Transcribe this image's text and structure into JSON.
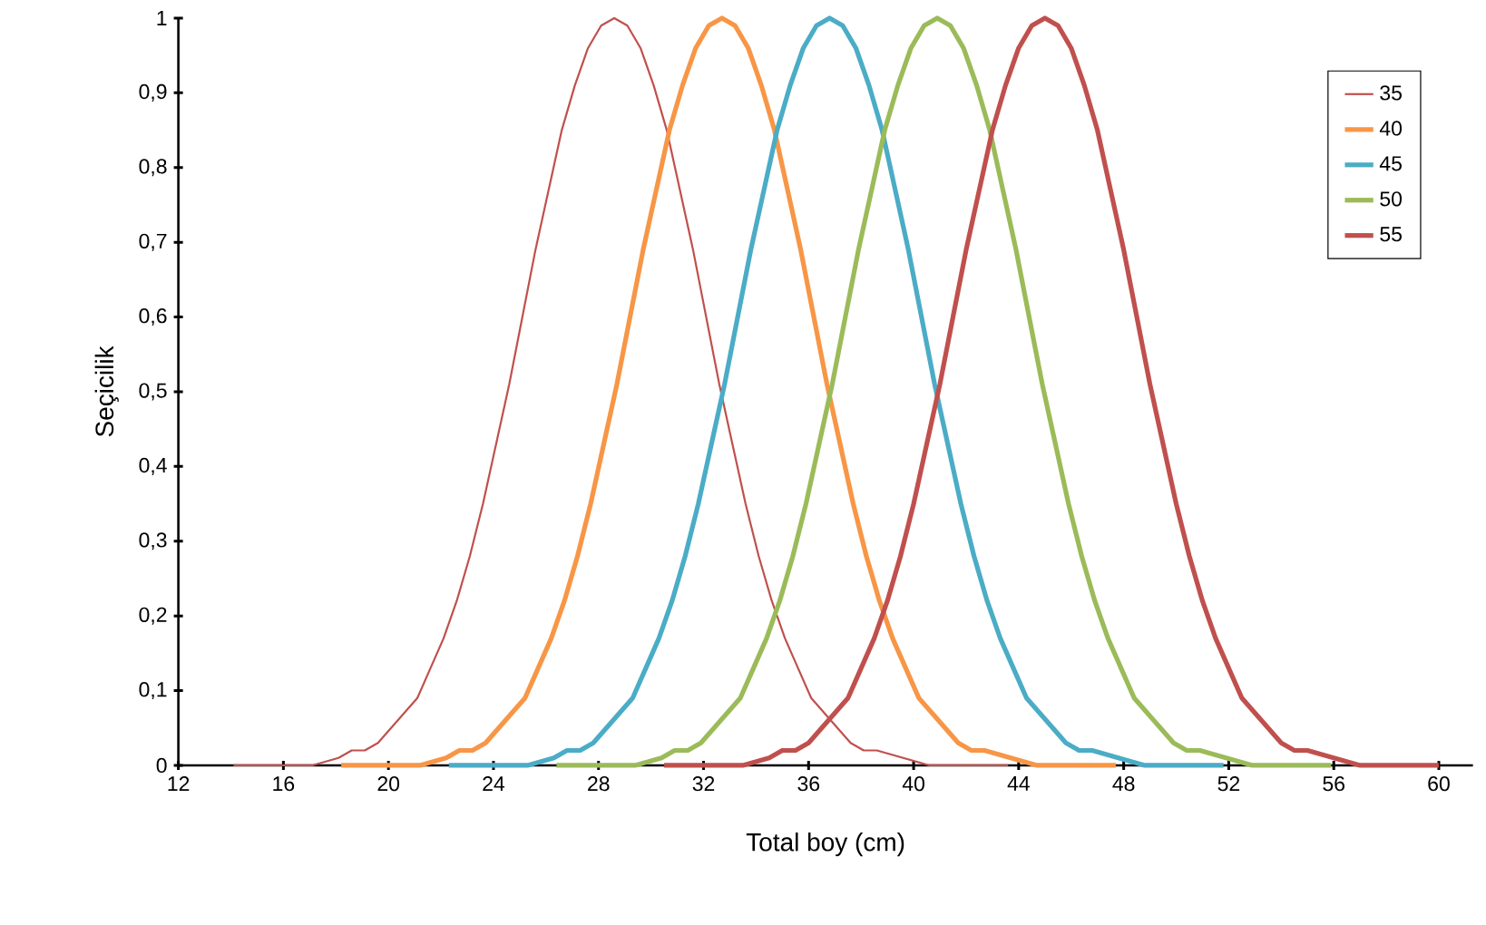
{
  "chart_data": {
    "type": "line",
    "xlabel": "Total boy (cm)",
    "ylabel": "Seçicilik",
    "xlim": [
      12,
      61.3
    ],
    "ylim": [
      0,
      1
    ],
    "xticks": [
      12,
      16,
      20,
      24,
      28,
      32,
      36,
      40,
      44,
      48,
      52,
      56,
      60
    ],
    "yticks": [
      0,
      {
        "value": 0.1,
        "label": "0,1"
      },
      {
        "value": 0.2,
        "label": "0,2"
      },
      {
        "value": 0.3,
        "label": "0,3"
      },
      {
        "value": 0.4,
        "label": "0,4"
      },
      {
        "value": 0.5,
        "label": "0,5"
      },
      {
        "value": 0.6,
        "label": "0,6"
      },
      {
        "value": 0.7,
        "label": "0,7"
      },
      {
        "value": 0.8,
        "label": "0,8"
      },
      {
        "value": 0.9,
        "label": "0,9"
      },
      1
    ],
    "grid": false,
    "legend": "top right",
    "series": [
      {
        "name": "35",
        "color": "#c0504d",
        "x": [
          14.1,
          15.1,
          16.1,
          17.1,
          18.1,
          18.6,
          19.1,
          19.6,
          20.1,
          20.6,
          21.1,
          21.6,
          22.1,
          22.6,
          23.1,
          23.6,
          24.1,
          24.6,
          25.1,
          25.6,
          26.1,
          26.6,
          27.1,
          27.6,
          28.1,
          28.6,
          29.1,
          29.6,
          30.1,
          30.6,
          31.1,
          31.6,
          32.1,
          32.6,
          33.1,
          33.6,
          34.1,
          34.6,
          35.1,
          35.6,
          36.1,
          36.6,
          37.1,
          37.6,
          38.1,
          38.6,
          39.6,
          40.6,
          41.6,
          42.6,
          43.6
        ],
        "values": [
          0,
          0,
          0,
          0,
          0.01,
          0.02,
          0.02,
          0.03,
          0.05,
          0.07,
          0.09,
          0.13,
          0.17,
          0.22,
          0.28,
          0.35,
          0.43,
          0.51,
          0.6,
          0.69,
          0.77,
          0.85,
          0.91,
          0.96,
          0.99,
          1,
          0.99,
          0.96,
          0.91,
          0.85,
          0.77,
          0.69,
          0.6,
          0.51,
          0.43,
          0.35,
          0.28,
          0.22,
          0.17,
          0.13,
          0.09,
          0.07,
          0.05,
          0.03,
          0.02,
          0.02,
          0.01,
          0,
          0,
          0,
          0
        ]
      },
      {
        "name": "40",
        "color": "#f79646",
        "x": [
          18.2,
          19.2,
          20.2,
          21.2,
          22.2,
          22.7,
          23.2,
          23.7,
          24.2,
          24.7,
          25.2,
          25.7,
          26.2,
          26.7,
          27.2,
          27.7,
          28.2,
          28.7,
          29.2,
          29.7,
          30.2,
          30.7,
          31.2,
          31.7,
          32.2,
          32.7,
          33.2,
          33.7,
          34.2,
          34.7,
          35.2,
          35.7,
          36.2,
          36.7,
          37.2,
          37.7,
          38.2,
          38.7,
          39.2,
          39.7,
          40.2,
          40.7,
          41.2,
          41.7,
          42.2,
          42.7,
          43.7,
          44.7,
          45.7,
          46.7,
          47.7
        ],
        "values": [
          0,
          0,
          0,
          0,
          0.01,
          0.02,
          0.02,
          0.03,
          0.05,
          0.07,
          0.09,
          0.13,
          0.17,
          0.22,
          0.28,
          0.35,
          0.43,
          0.51,
          0.6,
          0.69,
          0.77,
          0.85,
          0.91,
          0.96,
          0.99,
          1,
          0.99,
          0.96,
          0.91,
          0.85,
          0.77,
          0.69,
          0.6,
          0.51,
          0.43,
          0.35,
          0.28,
          0.22,
          0.17,
          0.13,
          0.09,
          0.07,
          0.05,
          0.03,
          0.02,
          0.02,
          0.01,
          0,
          0,
          0,
          0
        ]
      },
      {
        "name": "45",
        "color": "#4bacc6",
        "x": [
          22.3,
          23.3,
          24.3,
          25.3,
          26.3,
          26.8,
          27.3,
          27.8,
          28.3,
          28.8,
          29.3,
          29.8,
          30.3,
          30.8,
          31.3,
          31.8,
          32.3,
          32.8,
          33.3,
          33.8,
          34.3,
          34.8,
          35.3,
          35.8,
          36.3,
          36.8,
          37.3,
          37.8,
          38.3,
          38.8,
          39.3,
          39.8,
          40.3,
          40.8,
          41.3,
          41.8,
          42.3,
          42.8,
          43.3,
          43.8,
          44.3,
          44.8,
          45.3,
          45.8,
          46.3,
          46.8,
          47.8,
          48.8,
          49.8,
          50.8,
          51.8
        ],
        "values": [
          0,
          0,
          0,
          0,
          0.01,
          0.02,
          0.02,
          0.03,
          0.05,
          0.07,
          0.09,
          0.13,
          0.17,
          0.22,
          0.28,
          0.35,
          0.43,
          0.51,
          0.6,
          0.69,
          0.77,
          0.85,
          0.91,
          0.96,
          0.99,
          1,
          0.99,
          0.96,
          0.91,
          0.85,
          0.77,
          0.69,
          0.6,
          0.51,
          0.43,
          0.35,
          0.28,
          0.22,
          0.17,
          0.13,
          0.09,
          0.07,
          0.05,
          0.03,
          0.02,
          0.02,
          0.01,
          0,
          0,
          0,
          0
        ]
      },
      {
        "name": "50",
        "color": "#9bbb59",
        "x": [
          26.4,
          27.4,
          28.4,
          29.4,
          30.4,
          30.9,
          31.4,
          31.9,
          32.4,
          32.9,
          33.4,
          33.9,
          34.4,
          34.9,
          35.4,
          35.9,
          36.4,
          36.9,
          37.4,
          37.9,
          38.4,
          38.9,
          39.4,
          39.9,
          40.4,
          40.9,
          41.4,
          41.9,
          42.4,
          42.9,
          43.4,
          43.9,
          44.4,
          44.9,
          45.4,
          45.9,
          46.4,
          46.9,
          47.4,
          47.9,
          48.4,
          48.9,
          49.4,
          49.9,
          50.4,
          50.9,
          51.9,
          52.9,
          53.9,
          54.9,
          55.9
        ],
        "values": [
          0,
          0,
          0,
          0,
          0.01,
          0.02,
          0.02,
          0.03,
          0.05,
          0.07,
          0.09,
          0.13,
          0.17,
          0.22,
          0.28,
          0.35,
          0.43,
          0.51,
          0.6,
          0.69,
          0.77,
          0.85,
          0.91,
          0.96,
          0.99,
          1,
          0.99,
          0.96,
          0.91,
          0.85,
          0.77,
          0.69,
          0.6,
          0.51,
          0.43,
          0.35,
          0.28,
          0.22,
          0.17,
          0.13,
          0.09,
          0.07,
          0.05,
          0.03,
          0.02,
          0.02,
          0.01,
          0,
          0,
          0,
          0
        ]
      },
      {
        "name": "55",
        "color": "#c0504d",
        "x": [
          30.5,
          31.5,
          32.5,
          33.5,
          34.5,
          35,
          35.5,
          36,
          36.5,
          37,
          37.5,
          38,
          38.5,
          39,
          39.5,
          40,
          40.5,
          41,
          41.5,
          42,
          42.5,
          43,
          43.5,
          44,
          44.5,
          45,
          45.5,
          46,
          46.5,
          47,
          47.5,
          48,
          48.5,
          49,
          49.5,
          50,
          50.5,
          51,
          51.5,
          52,
          52.5,
          53,
          53.5,
          54,
          54.5,
          55,
          56,
          57,
          58,
          59,
          60
        ],
        "values": [
          0,
          0,
          0,
          0,
          0.01,
          0.02,
          0.02,
          0.03,
          0.05,
          0.07,
          0.09,
          0.13,
          0.17,
          0.22,
          0.28,
          0.35,
          0.43,
          0.51,
          0.6,
          0.69,
          0.77,
          0.85,
          0.91,
          0.96,
          0.99,
          1,
          0.99,
          0.96,
          0.91,
          0.85,
          0.77,
          0.69,
          0.6,
          0.51,
          0.43,
          0.35,
          0.28,
          0.22,
          0.17,
          0.13,
          0.09,
          0.07,
          0.05,
          0.03,
          0.02,
          0.02,
          0.01,
          0,
          0,
          0,
          0
        ]
      }
    ]
  }
}
